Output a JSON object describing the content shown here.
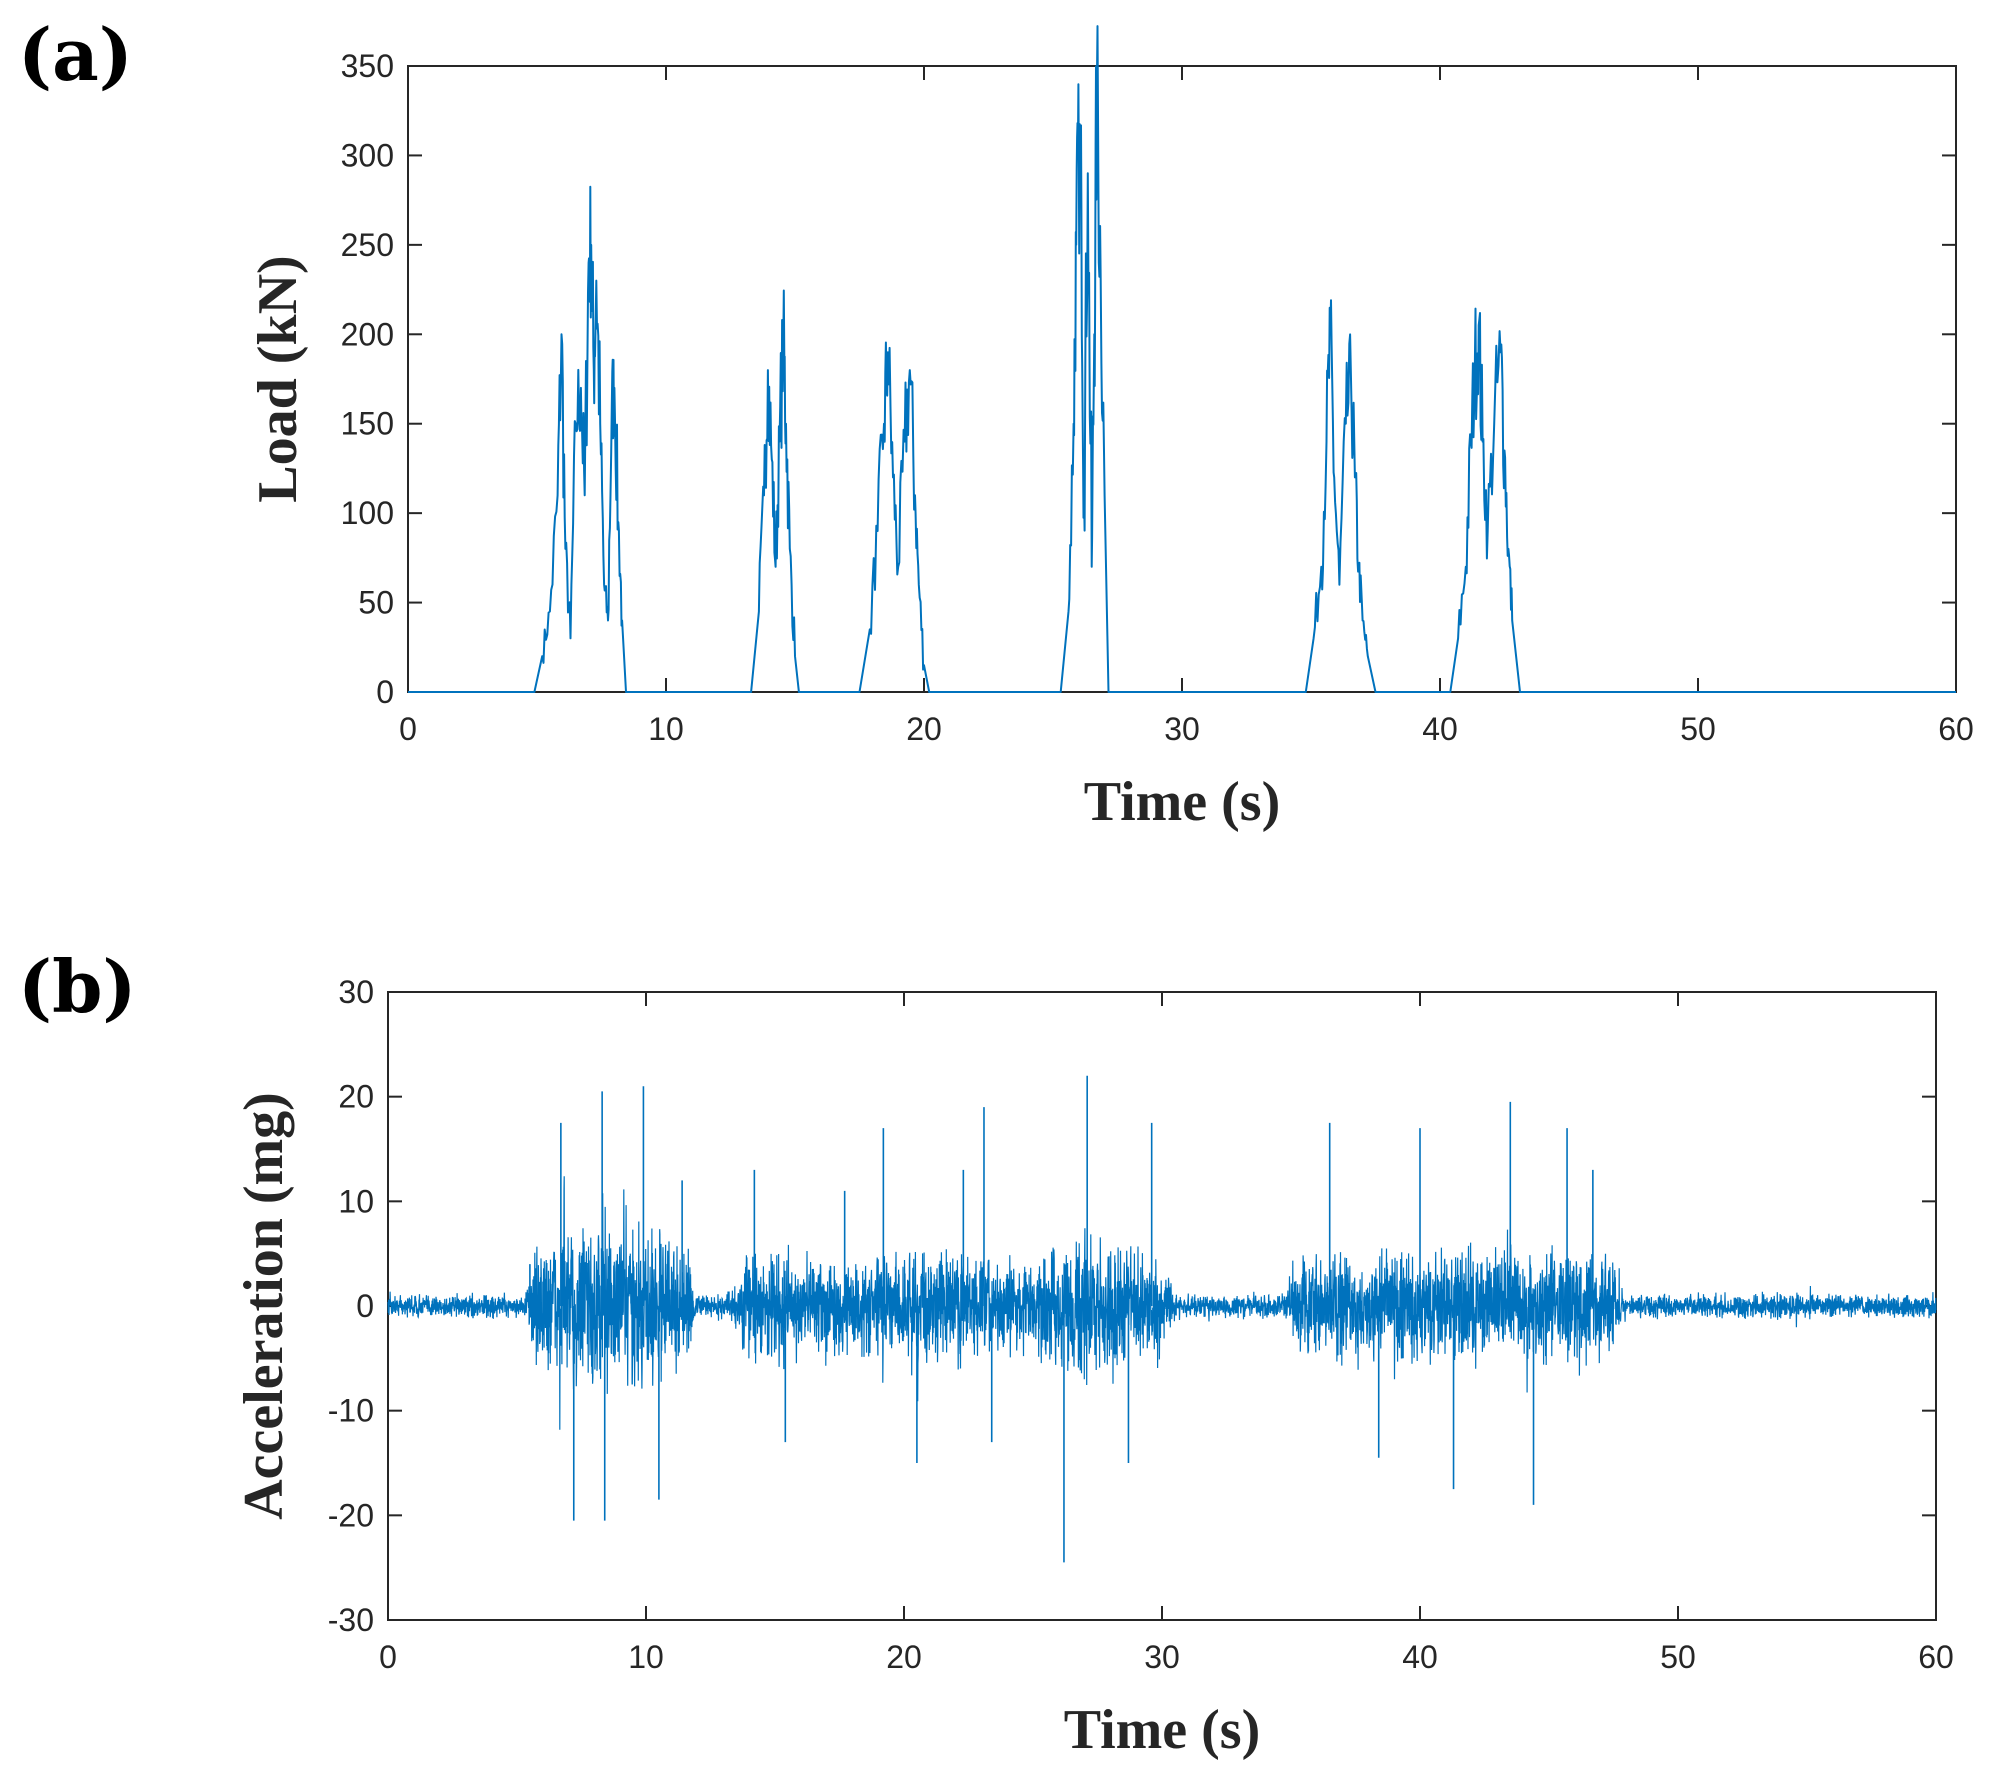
{
  "chart_data": [
    {
      "panel_label": "(a)",
      "type": "line",
      "xlabel": "Time (s)",
      "ylabel": "Load (kN)",
      "xlim": [
        0,
        60
      ],
      "ylim": [
        0,
        350
      ],
      "xticks": [
        0,
        10,
        20,
        30,
        40,
        50,
        60
      ],
      "yticks": [
        0,
        50,
        100,
        150,
        200,
        250,
        300,
        350
      ],
      "grid": false,
      "line_color": "#0072BD",
      "series": [
        {
          "name": "Load",
          "x": [
            0,
            4.9,
            5.2,
            5.5,
            5.8,
            5.95,
            6.1,
            6.3,
            6.5,
            6.7,
            6.85,
            7.0,
            7.1,
            7.2,
            7.3,
            7.45,
            7.6,
            7.75,
            7.9,
            8.0,
            8.15,
            8.3,
            8.45,
            13.3,
            13.6,
            13.8,
            13.95,
            14.1,
            14.25,
            14.4,
            14.55,
            14.65,
            14.8,
            15.0,
            15.15,
            17.5,
            17.9,
            18.2,
            18.45,
            18.6,
            18.8,
            19.0,
            19.25,
            19.45,
            19.65,
            19.8,
            20.0,
            20.2,
            25.3,
            25.6,
            25.8,
            25.9,
            26.0,
            26.1,
            26.2,
            26.35,
            26.5,
            26.6,
            26.7,
            26.85,
            27.0,
            27.15,
            34.8,
            35.1,
            35.4,
            35.6,
            35.75,
            35.9,
            36.1,
            36.35,
            36.55,
            36.7,
            36.85,
            37.0,
            37.2,
            37.5,
            40.4,
            40.7,
            41.0,
            41.2,
            41.35,
            41.5,
            41.65,
            41.85,
            42.1,
            42.35,
            42.5,
            42.65,
            42.8,
            43.1,
            60
          ],
          "y": [
            0,
            0,
            20,
            45,
            110,
            200,
            80,
            30,
            150,
            170,
            110,
            240,
            250,
            180,
            230,
            150,
            60,
            40,
            160,
            170,
            95,
            40,
            0,
            0,
            45,
            110,
            180,
            130,
            70,
            140,
            200,
            150,
            80,
            20,
            0,
            0,
            35,
            90,
            150,
            190,
            120,
            70,
            140,
            180,
            110,
            60,
            15,
            0,
            0,
            45,
            150,
            250,
            300,
            270,
            110,
            290,
            70,
            200,
            340,
            230,
            110,
            0,
            0,
            30,
            70,
            140,
            200,
            120,
            60,
            150,
            175,
            120,
            70,
            40,
            20,
            0,
            0,
            30,
            70,
            140,
            180,
            205,
            140,
            90,
            150,
            190,
            135,
            80,
            40,
            0,
            0
          ]
        }
      ]
    },
    {
      "panel_label": "(b)",
      "type": "line",
      "xlabel": "Time (s)",
      "ylabel": "Acceleration (mg)",
      "xlim": [
        0,
        60
      ],
      "ylim": [
        -30,
        30
      ],
      "xticks": [
        0,
        10,
        20,
        30,
        40,
        50,
        60
      ],
      "yticks": [
        -30,
        -20,
        -10,
        0,
        10,
        20,
        30
      ],
      "grid": false,
      "line_color": "#0072BD",
      "series": [
        {
          "name": "Acceleration",
          "sample_interval_s": 0.01,
          "envelope": {
            "t": [
              0,
              5.3,
              5.8,
              7.0,
              8.5,
              10.5,
              11.6,
              12.0,
              13.3,
              13.8,
              15.0,
              17.0,
              18.0,
              20.0,
              23.0,
              24.8,
              25.5,
              26.5,
              27.2,
              28.5,
              30.0,
              30.5,
              34.8,
              35.5,
              40.0,
              46.0,
              47.5,
              48.0,
              60
            ],
            "amplitude": [
              1.5,
              1.5,
              8,
              10,
              12,
              10,
              7,
              1.5,
              1.5,
              6,
              7,
              6,
              6,
              7,
              7,
              5,
              7,
              9,
              9,
              8,
              5,
              1.5,
              1.5,
              7,
              7,
              7,
              6,
              1.5,
              1.5
            ]
          },
          "peaks": [
            {
              "t": 5.5,
              "y": 4
            },
            {
              "t": 6.7,
              "y": 17.5
            },
            {
              "t": 7.2,
              "y": -20.5
            },
            {
              "t": 8.3,
              "y": 20.5
            },
            {
              "t": 8.4,
              "y": -20.5
            },
            {
              "t": 9.9,
              "y": 21
            },
            {
              "t": 10.5,
              "y": -18.5
            },
            {
              "t": 11.4,
              "y": 12
            },
            {
              "t": 14.2,
              "y": 13
            },
            {
              "t": 15.4,
              "y": -13
            },
            {
              "t": 17.7,
              "y": 11
            },
            {
              "t": 19.2,
              "y": 17
            },
            {
              "t": 20.5,
              "y": -15
            },
            {
              "t": 22.3,
              "y": 13
            },
            {
              "t": 23.1,
              "y": 19
            },
            {
              "t": 23.4,
              "y": -13
            },
            {
              "t": 26.2,
              "y": -24.5
            },
            {
              "t": 27.1,
              "y": 22
            },
            {
              "t": 29.6,
              "y": 17.5
            },
            {
              "t": 28.7,
              "y": -15
            },
            {
              "t": 36.5,
              "y": 17.5
            },
            {
              "t": 38.4,
              "y": -14.5
            },
            {
              "t": 40.0,
              "y": 17
            },
            {
              "t": 41.3,
              "y": -17.5
            },
            {
              "t": 43.5,
              "y": 19.5
            },
            {
              "t": 44.4,
              "y": -19
            },
            {
              "t": 45.7,
              "y": 17
            },
            {
              "t": 46.7,
              "y": 13
            }
          ]
        }
      ]
    }
  ]
}
